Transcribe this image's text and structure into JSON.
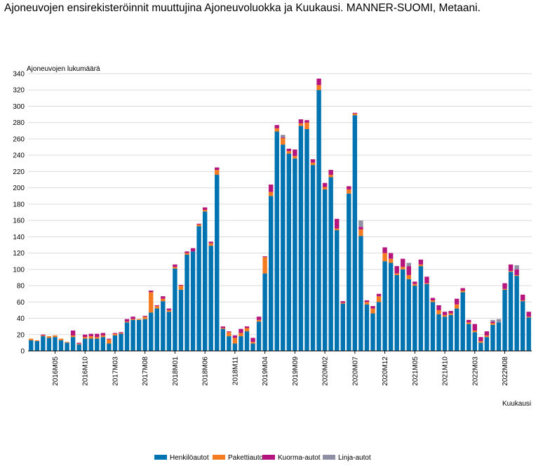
{
  "title": "Ajoneuvojen ensirekisteröinnit muuttujina Ajoneuvoluokka ja Kuukausi. MANNER-SUOMI, Metaani.",
  "chart_data": {
    "type": "bar",
    "stacked": true,
    "ylabel": "Ajoneuvojen lukumäärä",
    "xlabel": "Kuukausi",
    "ylim": [
      0,
      340
    ],
    "yticks": [
      0,
      20,
      40,
      60,
      80,
      100,
      120,
      140,
      160,
      180,
      200,
      220,
      240,
      260,
      280,
      300,
      320,
      340
    ],
    "grid": true,
    "legend_position": "bottom",
    "colors": [
      "#0073B0",
      "#F47B20",
      "#B5157D",
      "#8F8FA5"
    ],
    "categories": [
      "2016M01",
      "2016M02",
      "2016M03",
      "2016M04",
      "2016M05",
      "2016M06",
      "2016M07",
      "2016M08",
      "2016M09",
      "2016M10",
      "2016M11",
      "2016M12",
      "2017M01",
      "2017M02",
      "2017M03",
      "2017M04",
      "2017M05",
      "2017M06",
      "2017M07",
      "2017M08",
      "2017M09",
      "2017M10",
      "2017M11",
      "2017M12",
      "2018M01",
      "2018M02",
      "2018M03",
      "2018M04",
      "2018M05",
      "2018M06",
      "2018M07",
      "2018M08",
      "2018M09",
      "2018M10",
      "2018M11",
      "2018M12",
      "2019M01",
      "2019M02",
      "2019M03",
      "2019M04",
      "2019M05",
      "2019M06",
      "2019M07",
      "2019M08",
      "2019M09",
      "2019M10",
      "2019M11",
      "2019M12",
      "2020M01",
      "2020M02",
      "2020M03",
      "2020M04",
      "2020M05",
      "2020M06",
      "2020M07",
      "2020M08",
      "2020M09",
      "2020M10",
      "2020M11",
      "2020M12",
      "2021M01",
      "2021M02",
      "2021M03",
      "2021M04",
      "2021M05",
      "2021M06",
      "2021M07",
      "2021M08",
      "2021M09",
      "2021M10",
      "2021M11",
      "2021M12",
      "2022M01",
      "2022M02",
      "2022M03",
      "2022M04",
      "2022M05",
      "2022M06",
      "2022M07",
      "2022M08",
      "2022M09",
      "2022M10",
      "2022M11",
      "2022M12"
    ],
    "tick_labels": [
      "2016M05",
      "2016M10",
      "2017M03",
      "2017M08",
      "2018M01",
      "2018M06",
      "2018M11",
      "2019M04",
      "2019M09",
      "2020M02",
      "2020M07",
      "2020M12",
      "2021M05",
      "2021M10",
      "2022M03",
      "2022M08"
    ],
    "series": [
      {
        "name": "Henkilöautot",
        "values": [
          13,
          12,
          18,
          16,
          17,
          13,
          10,
          17,
          8,
          15,
          15,
          15,
          17,
          9,
          19,
          21,
          35,
          38,
          38,
          39,
          47,
          52,
          61,
          48,
          101,
          75,
          118,
          122,
          153,
          171,
          129,
          216,
          27,
          18,
          9,
          18,
          24,
          9,
          36,
          95,
          190,
          269,
          253,
          242,
          236,
          276,
          272,
          228,
          320,
          198,
          213,
          148,
          58,
          193,
          289,
          141,
          57,
          46,
          60,
          110,
          108,
          93,
          100,
          88,
          80,
          104,
          82,
          60,
          45,
          42,
          44,
          52,
          72,
          33,
          23,
          10,
          17,
          32,
          35,
          75,
          97,
          92,
          61,
          41
        ]
      },
      {
        "name": "Pakettiautot",
        "values": [
          2,
          1,
          1,
          2,
          2,
          2,
          1,
          2,
          1,
          2,
          3,
          2,
          2,
          5,
          2,
          1,
          1,
          1,
          1,
          3,
          25,
          3,
          3,
          2,
          2,
          5,
          2,
          0,
          2,
          2,
          3,
          6,
          1,
          5,
          7,
          4,
          4,
          2,
          2,
          20,
          5,
          4,
          8,
          3,
          3,
          3,
          8,
          3,
          6,
          3,
          3,
          2,
          1,
          5,
          2,
          8,
          3,
          6,
          7,
          10,
          5,
          2,
          3,
          5,
          2,
          2,
          1,
          2,
          5,
          2,
          2,
          5,
          2,
          2,
          2,
          2,
          2,
          2,
          0,
          1,
          1,
          1,
          1,
          1
        ]
      },
      {
        "name": "Kuorma-autot",
        "values": [
          0,
          0,
          1,
          0,
          0,
          0,
          0,
          6,
          1,
          3,
          3,
          4,
          3,
          1,
          1,
          1,
          3,
          3,
          0,
          1,
          2,
          1,
          3,
          2,
          3,
          1,
          2,
          4,
          1,
          3,
          2,
          3,
          2,
          1,
          3,
          5,
          2,
          5,
          4,
          1,
          9,
          4,
          1,
          3,
          8,
          5,
          3,
          4,
          8,
          5,
          6,
          12,
          2,
          4,
          1,
          3,
          2,
          3,
          3,
          7,
          7,
          9,
          10,
          11,
          3,
          6,
          8,
          3,
          6,
          4,
          3,
          7,
          3,
          3,
          8,
          5,
          5,
          2,
          0,
          7,
          8,
          7,
          7,
          6
        ]
      },
      {
        "name": "Linja-autot",
        "values": [
          0,
          0,
          0,
          0,
          0,
          0,
          0,
          0,
          0,
          0,
          0,
          0,
          0,
          0,
          0,
          0,
          0,
          0,
          0,
          0,
          0,
          0,
          0,
          0,
          0,
          0,
          0,
          0,
          0,
          0,
          0,
          0,
          0,
          0,
          0,
          0,
          0,
          0,
          0,
          0,
          0,
          0,
          3,
          0,
          0,
          0,
          0,
          0,
          0,
          0,
          0,
          0,
          0,
          0,
          0,
          8,
          0,
          0,
          0,
          0,
          0,
          0,
          0,
          4,
          0,
          0,
          0,
          0,
          0,
          0,
          0,
          0,
          0,
          0,
          0,
          0,
          0,
          2,
          4,
          0,
          0,
          5,
          0,
          0
        ]
      }
    ]
  }
}
